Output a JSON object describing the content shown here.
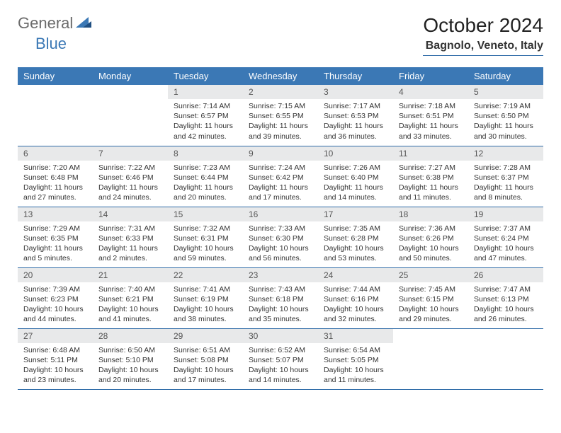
{
  "brand": {
    "part1": "General",
    "part2": "Blue"
  },
  "title": "October 2024",
  "location": "Bagnolo, Veneto, Italy",
  "colors": {
    "header_bg": "#3b78b5",
    "header_text": "#ffffff",
    "rule": "#2f6ca8",
    "daynum_bg": "#e8e9ea",
    "body_text": "#333333",
    "brand_gray": "#6b6b6b",
    "brand_blue": "#3b78b5"
  },
  "weekdays": [
    "Sunday",
    "Monday",
    "Tuesday",
    "Wednesday",
    "Thursday",
    "Friday",
    "Saturday"
  ],
  "weeks": [
    [
      {
        "n": "",
        "sr": "",
        "ss": "",
        "dl": ""
      },
      {
        "n": "",
        "sr": "",
        "ss": "",
        "dl": ""
      },
      {
        "n": "1",
        "sr": "Sunrise: 7:14 AM",
        "ss": "Sunset: 6:57 PM",
        "dl": "Daylight: 11 hours and 42 minutes."
      },
      {
        "n": "2",
        "sr": "Sunrise: 7:15 AM",
        "ss": "Sunset: 6:55 PM",
        "dl": "Daylight: 11 hours and 39 minutes."
      },
      {
        "n": "3",
        "sr": "Sunrise: 7:17 AM",
        "ss": "Sunset: 6:53 PM",
        "dl": "Daylight: 11 hours and 36 minutes."
      },
      {
        "n": "4",
        "sr": "Sunrise: 7:18 AM",
        "ss": "Sunset: 6:51 PM",
        "dl": "Daylight: 11 hours and 33 minutes."
      },
      {
        "n": "5",
        "sr": "Sunrise: 7:19 AM",
        "ss": "Sunset: 6:50 PM",
        "dl": "Daylight: 11 hours and 30 minutes."
      }
    ],
    [
      {
        "n": "6",
        "sr": "Sunrise: 7:20 AM",
        "ss": "Sunset: 6:48 PM",
        "dl": "Daylight: 11 hours and 27 minutes."
      },
      {
        "n": "7",
        "sr": "Sunrise: 7:22 AM",
        "ss": "Sunset: 6:46 PM",
        "dl": "Daylight: 11 hours and 24 minutes."
      },
      {
        "n": "8",
        "sr": "Sunrise: 7:23 AM",
        "ss": "Sunset: 6:44 PM",
        "dl": "Daylight: 11 hours and 20 minutes."
      },
      {
        "n": "9",
        "sr": "Sunrise: 7:24 AM",
        "ss": "Sunset: 6:42 PM",
        "dl": "Daylight: 11 hours and 17 minutes."
      },
      {
        "n": "10",
        "sr": "Sunrise: 7:26 AM",
        "ss": "Sunset: 6:40 PM",
        "dl": "Daylight: 11 hours and 14 minutes."
      },
      {
        "n": "11",
        "sr": "Sunrise: 7:27 AM",
        "ss": "Sunset: 6:38 PM",
        "dl": "Daylight: 11 hours and 11 minutes."
      },
      {
        "n": "12",
        "sr": "Sunrise: 7:28 AM",
        "ss": "Sunset: 6:37 PM",
        "dl": "Daylight: 11 hours and 8 minutes."
      }
    ],
    [
      {
        "n": "13",
        "sr": "Sunrise: 7:29 AM",
        "ss": "Sunset: 6:35 PM",
        "dl": "Daylight: 11 hours and 5 minutes."
      },
      {
        "n": "14",
        "sr": "Sunrise: 7:31 AM",
        "ss": "Sunset: 6:33 PM",
        "dl": "Daylight: 11 hours and 2 minutes."
      },
      {
        "n": "15",
        "sr": "Sunrise: 7:32 AM",
        "ss": "Sunset: 6:31 PM",
        "dl": "Daylight: 10 hours and 59 minutes."
      },
      {
        "n": "16",
        "sr": "Sunrise: 7:33 AM",
        "ss": "Sunset: 6:30 PM",
        "dl": "Daylight: 10 hours and 56 minutes."
      },
      {
        "n": "17",
        "sr": "Sunrise: 7:35 AM",
        "ss": "Sunset: 6:28 PM",
        "dl": "Daylight: 10 hours and 53 minutes."
      },
      {
        "n": "18",
        "sr": "Sunrise: 7:36 AM",
        "ss": "Sunset: 6:26 PM",
        "dl": "Daylight: 10 hours and 50 minutes."
      },
      {
        "n": "19",
        "sr": "Sunrise: 7:37 AM",
        "ss": "Sunset: 6:24 PM",
        "dl": "Daylight: 10 hours and 47 minutes."
      }
    ],
    [
      {
        "n": "20",
        "sr": "Sunrise: 7:39 AM",
        "ss": "Sunset: 6:23 PM",
        "dl": "Daylight: 10 hours and 44 minutes."
      },
      {
        "n": "21",
        "sr": "Sunrise: 7:40 AM",
        "ss": "Sunset: 6:21 PM",
        "dl": "Daylight: 10 hours and 41 minutes."
      },
      {
        "n": "22",
        "sr": "Sunrise: 7:41 AM",
        "ss": "Sunset: 6:19 PM",
        "dl": "Daylight: 10 hours and 38 minutes."
      },
      {
        "n": "23",
        "sr": "Sunrise: 7:43 AM",
        "ss": "Sunset: 6:18 PM",
        "dl": "Daylight: 10 hours and 35 minutes."
      },
      {
        "n": "24",
        "sr": "Sunrise: 7:44 AM",
        "ss": "Sunset: 6:16 PM",
        "dl": "Daylight: 10 hours and 32 minutes."
      },
      {
        "n": "25",
        "sr": "Sunrise: 7:45 AM",
        "ss": "Sunset: 6:15 PM",
        "dl": "Daylight: 10 hours and 29 minutes."
      },
      {
        "n": "26",
        "sr": "Sunrise: 7:47 AM",
        "ss": "Sunset: 6:13 PM",
        "dl": "Daylight: 10 hours and 26 minutes."
      }
    ],
    [
      {
        "n": "27",
        "sr": "Sunrise: 6:48 AM",
        "ss": "Sunset: 5:11 PM",
        "dl": "Daylight: 10 hours and 23 minutes."
      },
      {
        "n": "28",
        "sr": "Sunrise: 6:50 AM",
        "ss": "Sunset: 5:10 PM",
        "dl": "Daylight: 10 hours and 20 minutes."
      },
      {
        "n": "29",
        "sr": "Sunrise: 6:51 AM",
        "ss": "Sunset: 5:08 PM",
        "dl": "Daylight: 10 hours and 17 minutes."
      },
      {
        "n": "30",
        "sr": "Sunrise: 6:52 AM",
        "ss": "Sunset: 5:07 PM",
        "dl": "Daylight: 10 hours and 14 minutes."
      },
      {
        "n": "31",
        "sr": "Sunrise: 6:54 AM",
        "ss": "Sunset: 5:05 PM",
        "dl": "Daylight: 10 hours and 11 minutes."
      },
      {
        "n": "",
        "sr": "",
        "ss": "",
        "dl": ""
      },
      {
        "n": "",
        "sr": "",
        "ss": "",
        "dl": ""
      }
    ]
  ]
}
